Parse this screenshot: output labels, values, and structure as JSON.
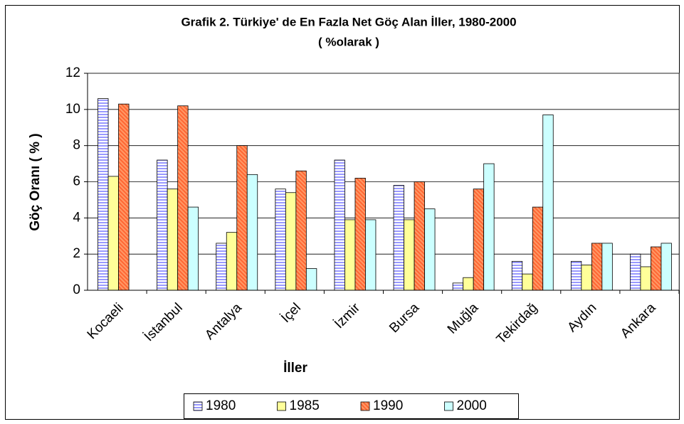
{
  "chart_data": {
    "type": "bar",
    "title": "Grafik 2. Türkiye' de En Fazla Net Göç Alan İller, 1980-2000",
    "subtitle": "( %olarak )",
    "y_label": "Göç Oranı ( % )",
    "x_label": "İller",
    "categories": [
      "Kocaeli",
      "İstanbul",
      "Antalya",
      "İçel",
      "İzmir",
      "Bursa",
      "Muğla",
      "Tekirdağ",
      "Aydın",
      "Ankara"
    ],
    "series": [
      {
        "name": "1980",
        "color": "#9999ff",
        "values": [
          10.6,
          7.2,
          2.6,
          5.6,
          7.2,
          5.8,
          0.4,
          1.6,
          1.6,
          2.0
        ]
      },
      {
        "name": "1985",
        "color": "#ffff99",
        "values": [
          6.3,
          5.6,
          3.2,
          5.4,
          3.9,
          3.9,
          0.7,
          0.9,
          1.4,
          1.3
        ]
      },
      {
        "name": "1990",
        "color": "#ff6633",
        "values": [
          10.3,
          10.2,
          8.0,
          6.6,
          6.2,
          6.0,
          5.6,
          4.6,
          2.6,
          2.4
        ]
      },
      {
        "name": "2000",
        "color": "#ccffff",
        "values": [
          null,
          4.6,
          6.4,
          1.2,
          3.9,
          4.5,
          7.0,
          9.7,
          2.6,
          2.6
        ]
      }
    ],
    "ylim": [
      0,
      12
    ],
    "yticks": [
      0,
      2,
      4,
      6,
      8,
      10,
      12
    ],
    "grid": true,
    "legend": "bottom"
  }
}
